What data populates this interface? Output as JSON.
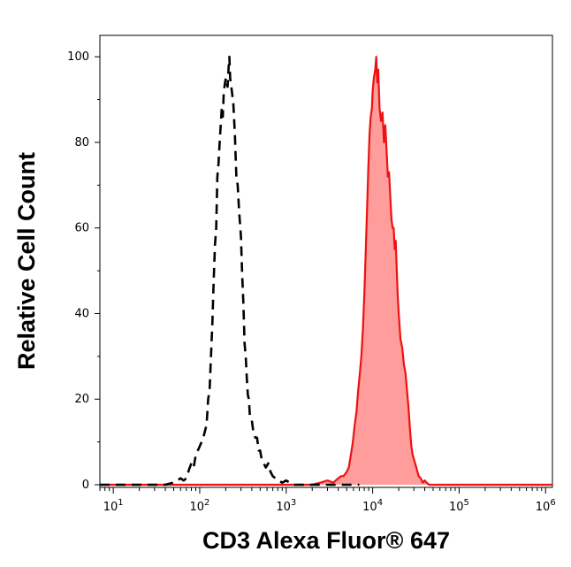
{
  "chart_data": {
    "type": "area",
    "xlabel": "CD3 Alexa Fluor® 647",
    "ylabel": "Relative Cell Count",
    "x_scale": "log",
    "xlim": [
      7,
      1200000
    ],
    "ylim": [
      0,
      105
    ],
    "grid": false,
    "x_ticks": [
      {
        "value": 10,
        "base": "10",
        "exp": "1"
      },
      {
        "value": 100,
        "base": "10",
        "exp": "2"
      },
      {
        "value": 1000,
        "base": "10",
        "exp": "3"
      },
      {
        "value": 10000,
        "base": "10",
        "exp": "4"
      },
      {
        "value": 100000,
        "base": "10",
        "exp": "5"
      },
      {
        "value": 1000000,
        "base": "10",
        "exp": "6"
      }
    ],
    "y_ticks": [
      0,
      20,
      40,
      60,
      80,
      100
    ],
    "series": [
      {
        "style": "dashed",
        "stroke": "#000000",
        "fill": "none",
        "points": [
          [
            7,
            0
          ],
          [
            40,
            0
          ],
          [
            50,
            0.5
          ],
          [
            55,
            1
          ],
          [
            60,
            1.5
          ],
          [
            65,
            1
          ],
          [
            70,
            1.5
          ],
          [
            75,
            3.5
          ],
          [
            80,
            5
          ],
          [
            85,
            4
          ],
          [
            90,
            7
          ],
          [
            95,
            8
          ],
          [
            100,
            9
          ],
          [
            110,
            11
          ],
          [
            120,
            14
          ],
          [
            125,
            20
          ],
          [
            130,
            22
          ],
          [
            135,
            30
          ],
          [
            140,
            38
          ],
          [
            145,
            48
          ],
          [
            150,
            56
          ],
          [
            155,
            60
          ],
          [
            160,
            72
          ],
          [
            165,
            75
          ],
          [
            170,
            80
          ],
          [
            175,
            84
          ],
          [
            180,
            88
          ],
          [
            185,
            86
          ],
          [
            190,
            92
          ],
          [
            200,
            95
          ],
          [
            210,
            93
          ],
          [
            215,
            97
          ],
          [
            220,
            100
          ],
          [
            225,
            95
          ],
          [
            235,
            92
          ],
          [
            245,
            89
          ],
          [
            255,
            82
          ],
          [
            265,
            72
          ],
          [
            275,
            70
          ],
          [
            285,
            64
          ],
          [
            300,
            58
          ],
          [
            310,
            49
          ],
          [
            320,
            42
          ],
          [
            330,
            33
          ],
          [
            340,
            30
          ],
          [
            350,
            25
          ],
          [
            360,
            21
          ],
          [
            370,
            20
          ],
          [
            380,
            16
          ],
          [
            400,
            15
          ],
          [
            420,
            12
          ],
          [
            440,
            11
          ],
          [
            460,
            11
          ],
          [
            480,
            8
          ],
          [
            500,
            8
          ],
          [
            520,
            6
          ],
          [
            550,
            5
          ],
          [
            580,
            4
          ],
          [
            620,
            5
          ],
          [
            660,
            3
          ],
          [
            700,
            2
          ],
          [
            750,
            1.5
          ],
          [
            800,
            1
          ],
          [
            900,
            0.5
          ],
          [
            1000,
            1
          ],
          [
            1100,
            0.5
          ],
          [
            1200,
            0
          ],
          [
            7000,
            0
          ]
        ]
      },
      {
        "style": "solid",
        "stroke": "#ee1111",
        "fill": "#ff9c9c",
        "points": [
          [
            7,
            0
          ],
          [
            2000,
            0
          ],
          [
            2500,
            0.5
          ],
          [
            3000,
            1
          ],
          [
            3500,
            0.5
          ],
          [
            4000,
            1.5
          ],
          [
            4300,
            2
          ],
          [
            4600,
            2
          ],
          [
            5000,
            3
          ],
          [
            5300,
            4
          ],
          [
            5600,
            7
          ],
          [
            5900,
            10
          ],
          [
            6200,
            14
          ],
          [
            6500,
            17
          ],
          [
            6800,
            22
          ],
          [
            7100,
            26
          ],
          [
            7400,
            30
          ],
          [
            7700,
            36
          ],
          [
            8000,
            44
          ],
          [
            8300,
            54
          ],
          [
            8600,
            64
          ],
          [
            8900,
            74
          ],
          [
            9200,
            82
          ],
          [
            9500,
            86
          ],
          [
            9800,
            88
          ],
          [
            10000,
            92
          ],
          [
            10300,
            95
          ],
          [
            10700,
            97
          ],
          [
            11000,
            100
          ],
          [
            11300,
            94
          ],
          [
            11600,
            97
          ],
          [
            12000,
            88
          ],
          [
            12500,
            85
          ],
          [
            13000,
            87
          ],
          [
            13500,
            80
          ],
          [
            14000,
            84
          ],
          [
            14500,
            78
          ],
          [
            15000,
            72
          ],
          [
            15500,
            73
          ],
          [
            16000,
            67
          ],
          [
            16500,
            62
          ],
          [
            17000,
            60
          ],
          [
            17500,
            60
          ],
          [
            18000,
            55
          ],
          [
            18500,
            57
          ],
          [
            19000,
            50
          ],
          [
            19500,
            44
          ],
          [
            20000,
            40
          ],
          [
            21000,
            34
          ],
          [
            22000,
            32
          ],
          [
            23000,
            28
          ],
          [
            24000,
            26
          ],
          [
            25000,
            22
          ],
          [
            26000,
            18
          ],
          [
            27000,
            13
          ],
          [
            28000,
            9
          ],
          [
            29000,
            7
          ],
          [
            30000,
            6
          ],
          [
            32000,
            4
          ],
          [
            34000,
            2
          ],
          [
            36000,
            1.5
          ],
          [
            38000,
            0.5
          ],
          [
            40000,
            1
          ],
          [
            42000,
            0.5
          ],
          [
            45000,
            0
          ],
          [
            1200000,
            0
          ]
        ]
      }
    ]
  }
}
